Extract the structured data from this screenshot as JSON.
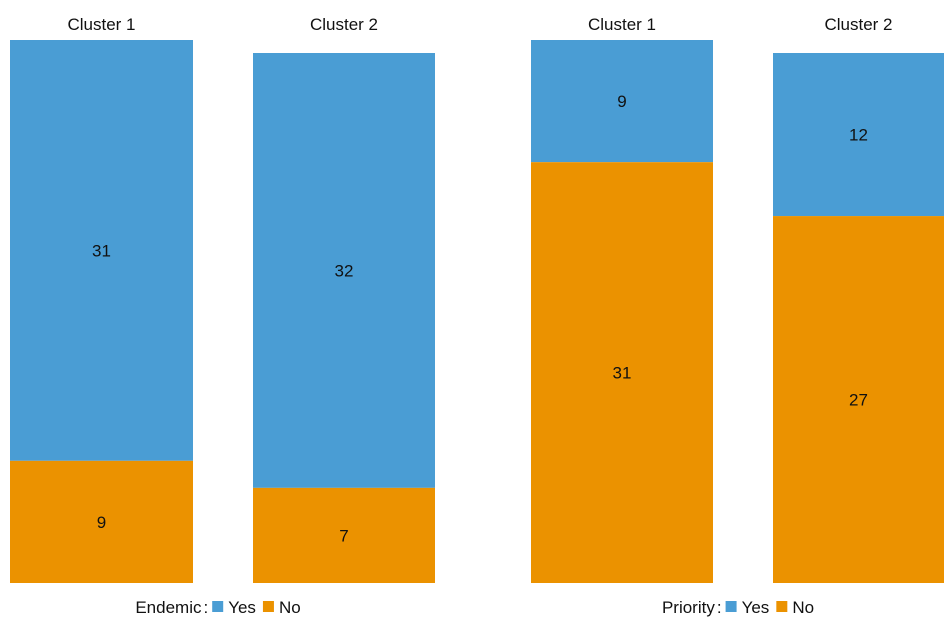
{
  "chart_data": [
    {
      "type": "bar",
      "stacked": true,
      "normalized": true,
      "categories": [
        "Cluster 1",
        "Cluster 2"
      ],
      "series": [
        {
          "name": "Yes",
          "values": [
            31,
            32
          ],
          "color": "#4a9dd4"
        },
        {
          "name": "No",
          "values": [
            9,
            7
          ],
          "color": "#eb9200"
        }
      ],
      "legend_title": "Endemic",
      "legend_position": "bottom-center",
      "grid": false
    },
    {
      "type": "bar",
      "stacked": true,
      "normalized": true,
      "categories": [
        "Cluster 1",
        "Cluster 2"
      ],
      "series": [
        {
          "name": "Yes",
          "values": [
            9,
            12
          ],
          "color": "#4a9dd4"
        },
        {
          "name": "No",
          "values": [
            31,
            27
          ],
          "color": "#eb9200"
        }
      ],
      "legend_title": "Priority",
      "legend_position": "bottom-center",
      "grid": false
    }
  ]
}
